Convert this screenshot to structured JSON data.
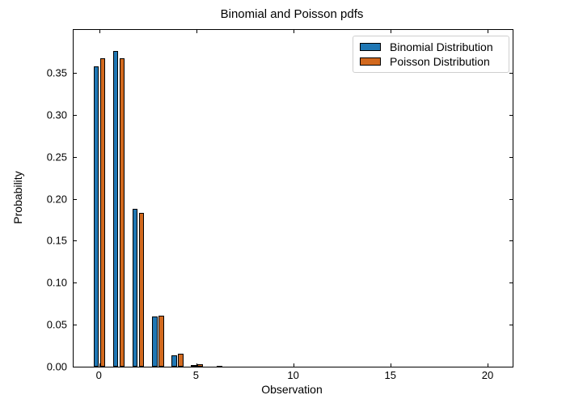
{
  "chart_data": {
    "type": "bar",
    "title": "Binomial and Poisson pdfs",
    "xlabel": "Observation",
    "ylabel": "Probability",
    "categories": [
      0,
      1,
      2,
      3,
      4,
      5,
      6,
      7,
      8
    ],
    "series": [
      {
        "name": "Binomial Distribution",
        "color": "#1f77b4",
        "values": [
          0.358486,
          0.377354,
          0.188677,
          0.059582,
          0.013328,
          0.002245,
          0.000295,
          3.11e-05,
          2.7e-06
        ]
      },
      {
        "name": "Poisson Distribution",
        "color": "#d2691e",
        "values": [
          0.367879,
          0.367879,
          0.18394,
          0.061313,
          0.015328,
          0.003066,
          0.000511,
          7.3e-05,
          9.1e-06
        ]
      }
    ],
    "bar_edge_color": "#000000",
    "xlim": [
      -1.34,
      21.25
    ],
    "ylim": [
      0,
      0.402
    ],
    "x_ticks": [
      0,
      5,
      10,
      15,
      20
    ],
    "x_tick_labels": [
      "0",
      "5",
      "10",
      "15",
      "20"
    ],
    "y_ticks": [
      0,
      0.05,
      0.1,
      0.15,
      0.2,
      0.25,
      0.3,
      0.35
    ],
    "y_tick_labels": [
      "0.00",
      "0.05",
      "0.10",
      "0.15",
      "0.20",
      "0.25",
      "0.30",
      "0.35"
    ],
    "legend_position": "upper right",
    "grid": false,
    "tick_direction": "in",
    "ticks_on_all_sides": true
  }
}
